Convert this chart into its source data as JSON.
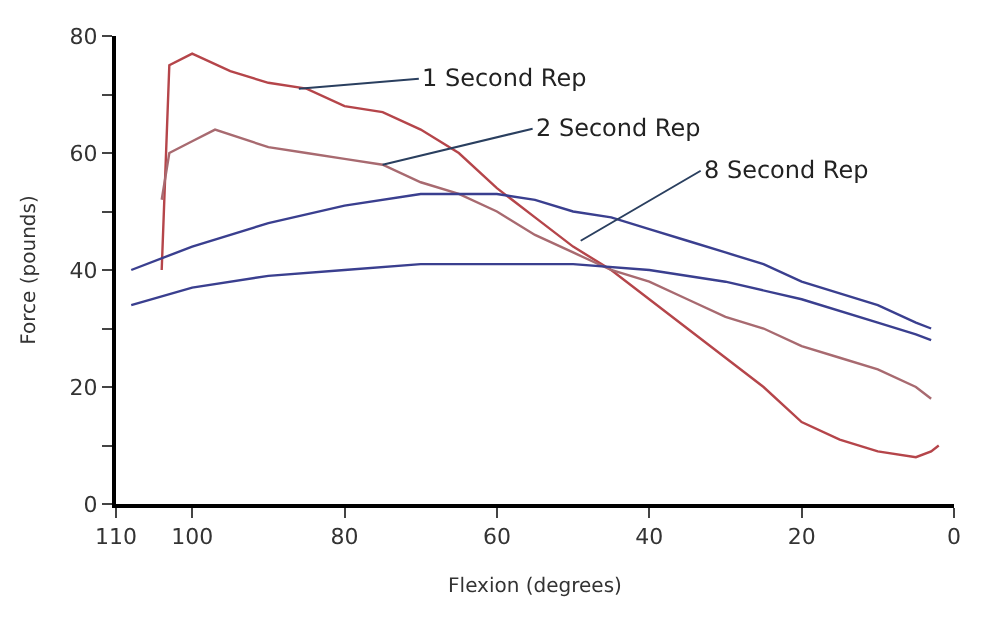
{
  "chart_data": {
    "type": "line",
    "xlabel": "Flexion (degrees)",
    "ylabel": "Force (pounds)",
    "xlim": [
      110,
      0
    ],
    "xticks": [
      110,
      100,
      80,
      60,
      40,
      20,
      0
    ],
    "ylim": [
      0,
      80
    ],
    "yticks": [
      0,
      {
        "value": 10,
        "label": null
      },
      20,
      {
        "value": 30,
        "label": null
      },
      40,
      {
        "value": 50,
        "label": null
      },
      60,
      {
        "value": 70,
        "label": null
      },
      80
    ],
    "marker": "none",
    "line_style": "solid",
    "series": [
      {
        "color": "#b5454a",
        "x": [
          104,
          103,
          100,
          95,
          90,
          85,
          80,
          75,
          70,
          65,
          60,
          55,
          50,
          45,
          40,
          35,
          30,
          25,
          20,
          15,
          10,
          5,
          3,
          2
        ],
        "values": [
          40,
          75,
          77,
          74,
          72,
          71,
          68,
          67,
          64,
          60,
          54,
          49,
          44,
          40,
          35,
          30,
          25,
          20,
          14,
          11,
          9,
          8,
          9,
          10
        ]
      },
      {
        "color": "#a86a70",
        "x": [
          104,
          103,
          100,
          97,
          90,
          85,
          80,
          75,
          70,
          65,
          60,
          55,
          50,
          45,
          40,
          35,
          30,
          25,
          20,
          15,
          10,
          5,
          3
        ],
        "values": [
          52,
          60,
          62,
          64,
          61,
          60,
          59,
          58,
          55,
          53,
          50,
          46,
          43,
          40,
          38,
          35,
          32,
          30,
          27,
          25,
          23,
          20,
          18
        ]
      },
      {
        "color": "#3a3f8f",
        "x": [
          108,
          100,
          90,
          80,
          70,
          60,
          55,
          50,
          45,
          40,
          35,
          30,
          25,
          20,
          15,
          10,
          5,
          3
        ],
        "values": [
          40,
          44,
          48,
          51,
          53,
          53,
          52,
          50,
          49,
          47,
          45,
          43,
          41,
          38,
          36,
          34,
          31,
          30
        ]
      },
      {
        "color": "#3a3f8f",
        "x": [
          108,
          100,
          90,
          80,
          70,
          60,
          50,
          40,
          30,
          20,
          10,
          5,
          3
        ],
        "values": [
          34,
          37,
          39,
          40,
          41,
          41,
          41,
          40,
          38,
          35,
          31,
          29,
          28
        ]
      }
    ],
    "annotations": [
      {
        "text": "1 Second Rep",
        "x": 86,
        "y": 71
      },
      {
        "text": "2 Second Rep",
        "x": 75,
        "y": 58
      },
      {
        "text": "8 Second Rep",
        "x": 49,
        "y": 45
      }
    ]
  }
}
